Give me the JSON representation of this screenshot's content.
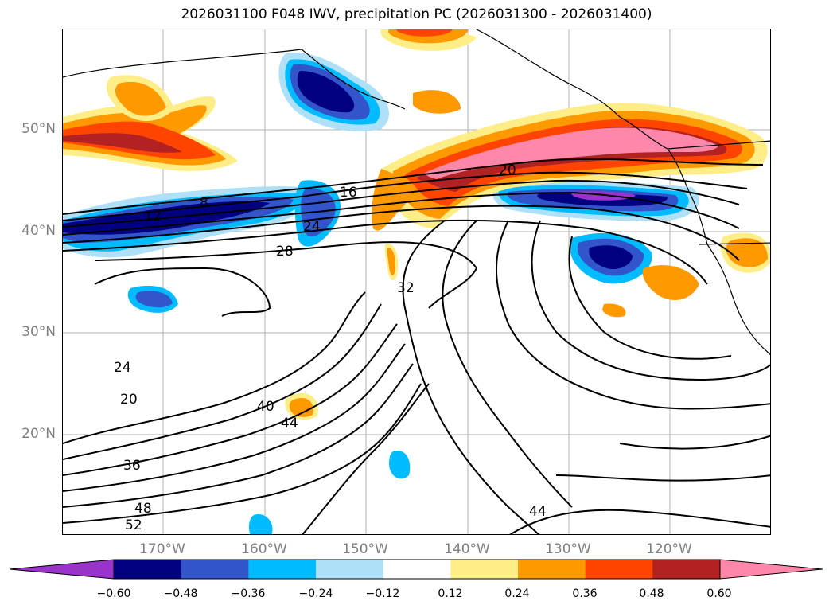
{
  "title": "2026031100 F048 IWV, precipitation PC (2026031300 - 2026031400)",
  "map": {
    "lat_labels": [
      "50°N",
      "40°N",
      "30°N",
      "20°N"
    ],
    "lon_labels": [
      "170°W",
      "160°W",
      "150°W",
      "140°W",
      "130°W",
      "120°W"
    ],
    "contour_labels": [
      "20",
      "16",
      "8",
      "12",
      "24",
      "28",
      "32",
      "24",
      "20",
      "40",
      "44",
      "36",
      "48",
      "52",
      "44"
    ]
  },
  "colorbar": {
    "ticks": [
      "−0.60",
      "−0.48",
      "−0.36",
      "−0.24",
      "−0.12",
      "0.12",
      "0.24",
      "0.36",
      "0.48",
      "0.60"
    ],
    "colors": [
      "#9933cc",
      "#000080",
      "#3355cc",
      "#00bbff",
      "#aee0f8",
      "#ffffff",
      "#ffee88",
      "#ff9900",
      "#ff4400",
      "#b22222",
      "#ff88aa"
    ]
  }
}
